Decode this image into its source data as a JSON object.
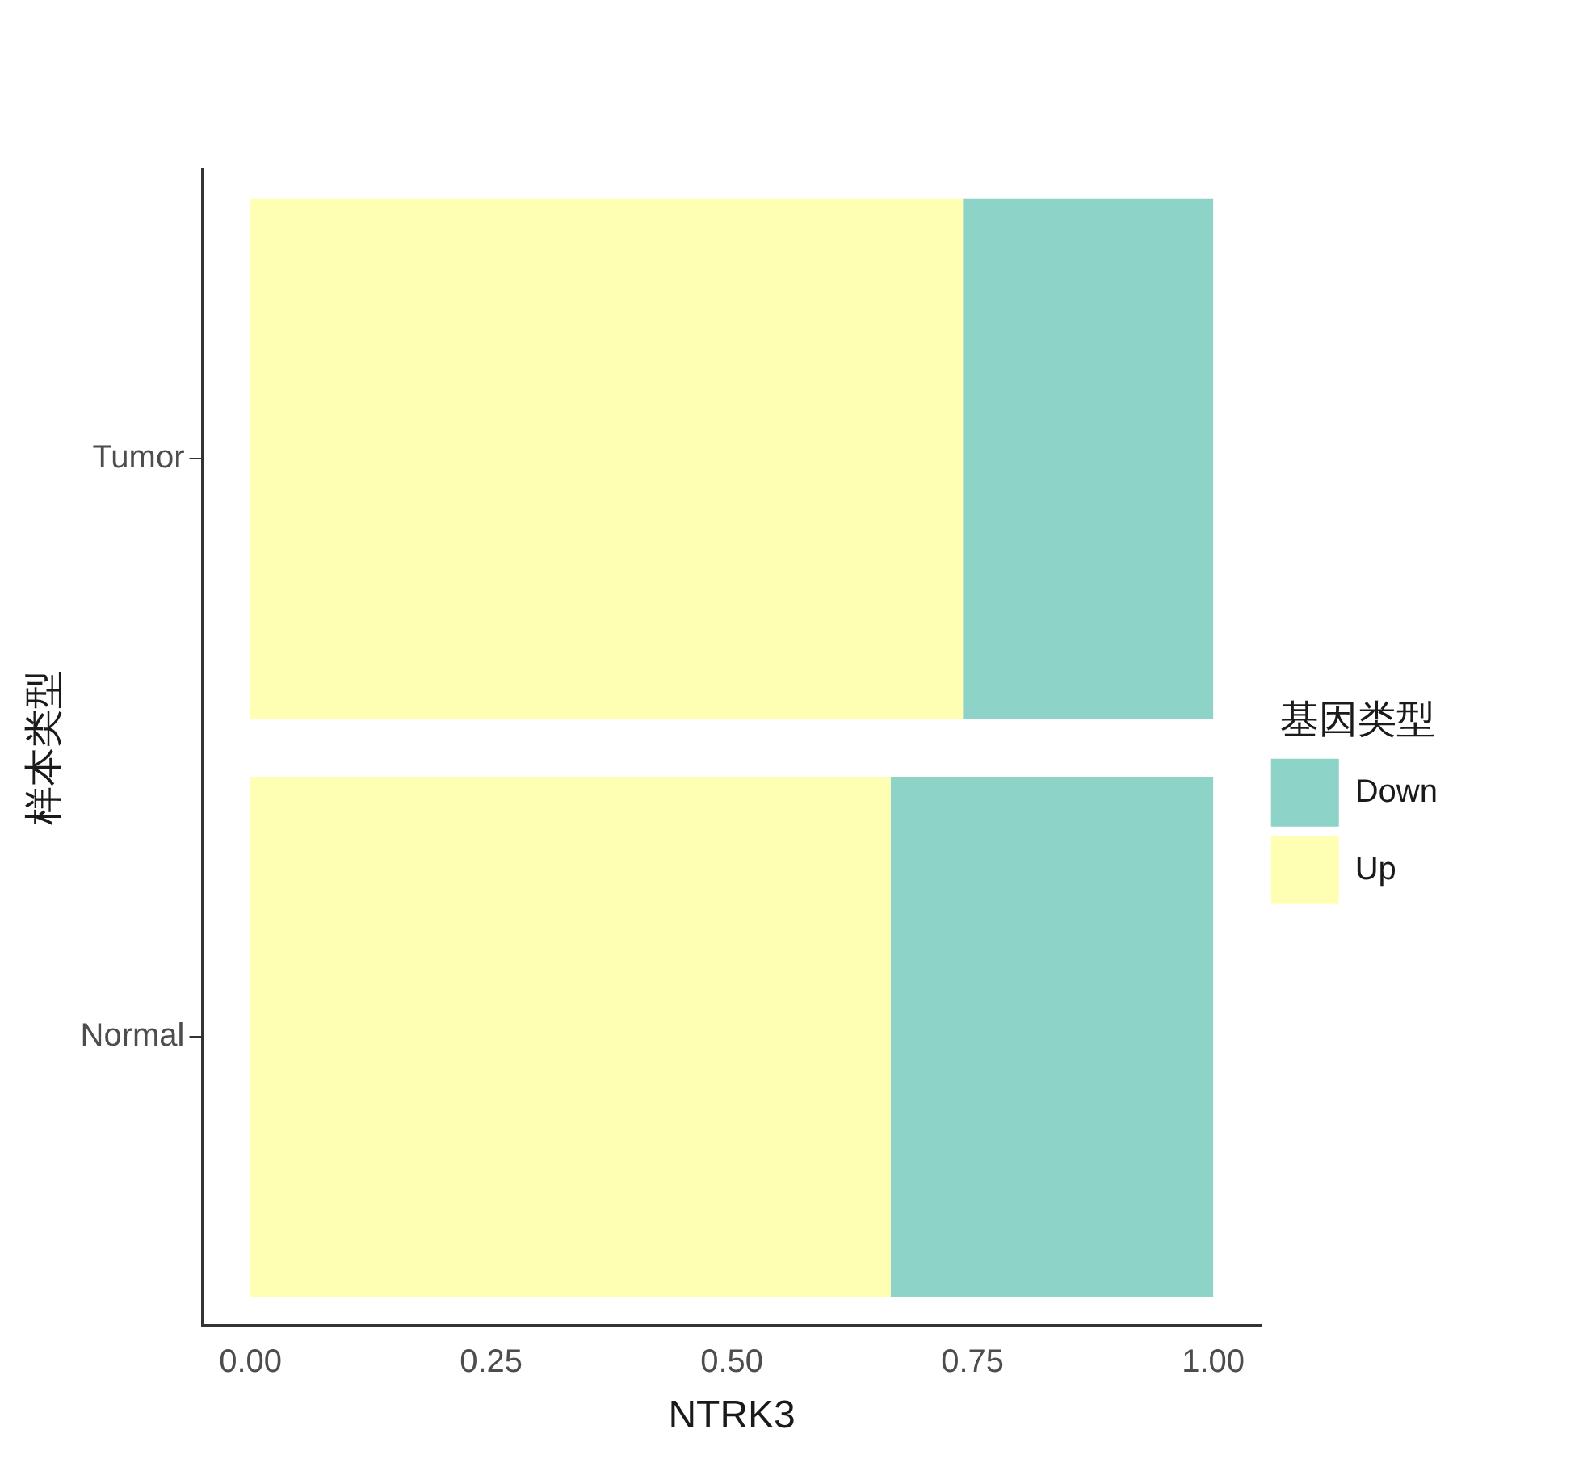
{
  "chart_data": {
    "type": "bar",
    "orientation": "horizontal",
    "stacked": true,
    "xlabel": "NTRK3",
    "ylabel": "样本类型",
    "legend_title": "基因类型",
    "legend": "right",
    "categories": [
      "Tumor",
      "Normal"
    ],
    "series": [
      {
        "name": "Up",
        "color": "#ffffb3",
        "values": [
          0.74,
          0.665
        ]
      },
      {
        "name": "Down",
        "color": "#8dd3c7",
        "values": [
          0.26,
          0.335
        ]
      }
    ],
    "xlim": [
      -0.05,
      1.05
    ],
    "xticks": [
      {
        "value": 0,
        "label": "0.00"
      },
      {
        "value": 0.25,
        "label": "0.25"
      },
      {
        "value": 0.5,
        "label": "0.50"
      },
      {
        "value": 0.75,
        "label": "0.75"
      },
      {
        "value": 1,
        "label": "1.00"
      }
    ],
    "grid": false
  }
}
